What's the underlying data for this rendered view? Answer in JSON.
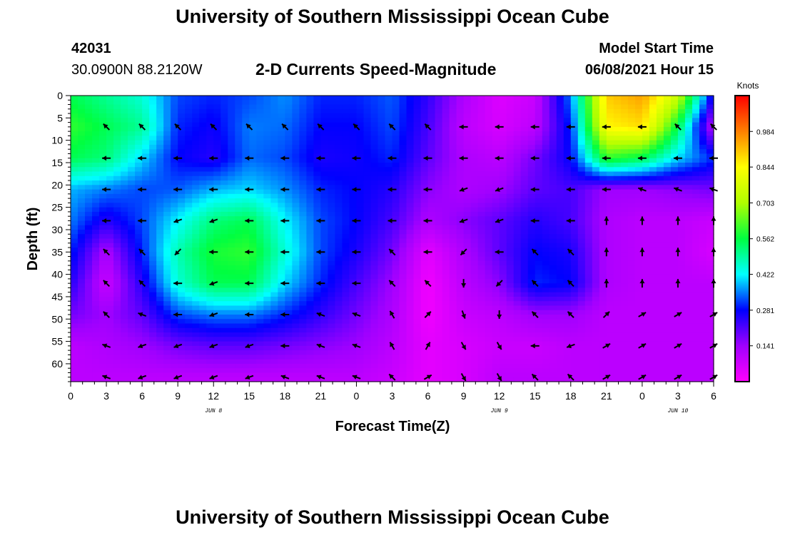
{
  "header": {
    "title": "University of Southern Mississippi Ocean Cube",
    "station_id": "42031",
    "station_coords": "30.0900N  88.2120W",
    "plot_title": "2-D Currents Speed-Magnitude",
    "model_start_label": "Model Start Time",
    "model_start_value": "06/08/2021 Hour 15"
  },
  "footer": {
    "title": "University of Southern Mississippi Ocean Cube"
  },
  "colors": {
    "scale": [
      "#ff00ff",
      "#a000ff",
      "#0000ff",
      "#00ffff",
      "#00ff40",
      "#b0ff00",
      "#ffff00",
      "#ff8000",
      "#ff0000"
    ],
    "arrow": "#000000"
  },
  "chart_data": {
    "type": "heatmap",
    "title": "2-D Currents Speed-Magnitude",
    "xlabel": "Forecast Time(Z)",
    "ylabel": "Depth (ft)",
    "x_ticks": [
      "0",
      "3",
      "6",
      "9",
      "12",
      "15",
      "18",
      "21",
      "0",
      "3",
      "6",
      "9",
      "12",
      "15",
      "18",
      "21",
      "0",
      "3",
      "6"
    ],
    "x_range_hours": [
      0,
      54
    ],
    "date_labels": [
      {
        "text": "JUN 8",
        "hour": 12
      },
      {
        "text": "JUN 9",
        "hour": 36
      },
      {
        "text": "JUN 10",
        "hour": 51
      }
    ],
    "y_ticks": [
      0,
      5,
      10,
      15,
      20,
      25,
      30,
      35,
      40,
      45,
      50,
      55,
      60
    ],
    "ylim": [
      0,
      64
    ],
    "colorbar": {
      "label": "Knots",
      "ticks": [
        "0.984",
        "0.844",
        "0.703",
        "0.562",
        "0.422",
        "0.281",
        "0.141"
      ],
      "tick_values": [
        0.984,
        0.844,
        0.703,
        0.562,
        0.422,
        0.281,
        0.141
      ],
      "range": [
        0,
        1.125
      ]
    },
    "speed_grid": {
      "hours": [
        0,
        3,
        6,
        9,
        12,
        15,
        18,
        21,
        24,
        27,
        30,
        33,
        36,
        39,
        42,
        45,
        48,
        51,
        54
      ],
      "depths": [
        0,
        7,
        14,
        21,
        28,
        35,
        42,
        49,
        56,
        63
      ],
      "knots": [
        [
          0.55,
          0.5,
          0.45,
          0.32,
          0.3,
          0.32,
          0.36,
          0.3,
          0.3,
          0.33,
          0.24,
          0.12,
          0.05,
          0.08,
          0.35,
          0.9,
          0.95,
          0.75,
          0.25
        ],
        [
          0.6,
          0.55,
          0.5,
          0.3,
          0.27,
          0.35,
          0.34,
          0.28,
          0.28,
          0.32,
          0.22,
          0.1,
          0.06,
          0.1,
          0.3,
          0.85,
          0.88,
          0.55,
          0.1
        ],
        [
          0.55,
          0.52,
          0.4,
          0.28,
          0.25,
          0.34,
          0.32,
          0.26,
          0.27,
          0.3,
          0.2,
          0.12,
          0.1,
          0.18,
          0.28,
          0.6,
          0.55,
          0.4,
          0.3
        ],
        [
          0.38,
          0.35,
          0.32,
          0.33,
          0.38,
          0.4,
          0.36,
          0.3,
          0.28,
          0.25,
          0.16,
          0.12,
          0.14,
          0.2,
          0.22,
          0.14,
          0.14,
          0.16,
          0.18
        ],
        [
          0.35,
          0.25,
          0.32,
          0.42,
          0.52,
          0.55,
          0.42,
          0.32,
          0.28,
          0.22,
          0.12,
          0.16,
          0.2,
          0.25,
          0.22,
          0.12,
          0.1,
          0.1,
          0.08
        ],
        [
          0.3,
          0.12,
          0.3,
          0.48,
          0.58,
          0.6,
          0.45,
          0.32,
          0.26,
          0.18,
          0.04,
          0.12,
          0.2,
          0.28,
          0.26,
          0.12,
          0.1,
          0.1,
          0.06
        ],
        [
          0.25,
          0.08,
          0.25,
          0.45,
          0.55,
          0.55,
          0.4,
          0.3,
          0.22,
          0.14,
          0.02,
          0.1,
          0.16,
          0.3,
          0.28,
          0.12,
          0.1,
          0.1,
          0.1
        ],
        [
          0.18,
          0.14,
          0.2,
          0.32,
          0.35,
          0.35,
          0.3,
          0.24,
          0.18,
          0.12,
          0.02,
          0.08,
          0.1,
          0.14,
          0.14,
          0.1,
          0.1,
          0.1,
          0.1
        ],
        [
          0.1,
          0.12,
          0.14,
          0.18,
          0.2,
          0.2,
          0.18,
          0.16,
          0.14,
          0.1,
          0.04,
          0.06,
          0.08,
          0.08,
          0.1,
          0.1,
          0.1,
          0.1,
          0.1
        ],
        [
          0.1,
          0.1,
          0.1,
          0.1,
          0.1,
          0.1,
          0.1,
          0.1,
          0.1,
          0.08,
          0.04,
          0.06,
          0.1,
          0.1,
          0.1,
          0.1,
          0.1,
          0.1,
          0.1
        ]
      ]
    },
    "vectors": {
      "hours": [
        3,
        6,
        9,
        12,
        15,
        18,
        21,
        24,
        27,
        30,
        33,
        36,
        39,
        42,
        45,
        48,
        51,
        54
      ],
      "depths": [
        7,
        14,
        21,
        28,
        35,
        42,
        49,
        56,
        63
      ],
      "directions_deg": [
        [
          135,
          135,
          135,
          135,
          135,
          135,
          135,
          135,
          135,
          135,
          180,
          180,
          180,
          180,
          180,
          180,
          135,
          135
        ],
        [
          180,
          180,
          180,
          180,
          180,
          180,
          180,
          180,
          180,
          180,
          180,
          180,
          180,
          180,
          180,
          180,
          180,
          180
        ],
        [
          180,
          180,
          180,
          180,
          180,
          180,
          180,
          180,
          180,
          180,
          200,
          200,
          180,
          180,
          180,
          160,
          160,
          160
        ],
        [
          180,
          180,
          200,
          200,
          180,
          180,
          180,
          180,
          180,
          180,
          200,
          200,
          180,
          180,
          90,
          90,
          90,
          90
        ],
        [
          135,
          135,
          225,
          180,
          180,
          180,
          180,
          180,
          135,
          180,
          225,
          180,
          135,
          135,
          90,
          90,
          90,
          90
        ],
        [
          135,
          135,
          180,
          200,
          180,
          180,
          180,
          180,
          135,
          135,
          270,
          225,
          135,
          135,
          90,
          90,
          90,
          90
        ],
        [
          135,
          160,
          180,
          200,
          180,
          180,
          160,
          160,
          120,
          45,
          290,
          270,
          135,
          135,
          45,
          30,
          30,
          30
        ],
        [
          160,
          200,
          200,
          200,
          200,
          180,
          160,
          160,
          120,
          60,
          300,
          300,
          180,
          200,
          30,
          30,
          30,
          30
        ],
        [
          160,
          200,
          200,
          200,
          200,
          160,
          160,
          160,
          135,
          30,
          300,
          300,
          135,
          135,
          30,
          30,
          30,
          30
        ]
      ]
    }
  }
}
